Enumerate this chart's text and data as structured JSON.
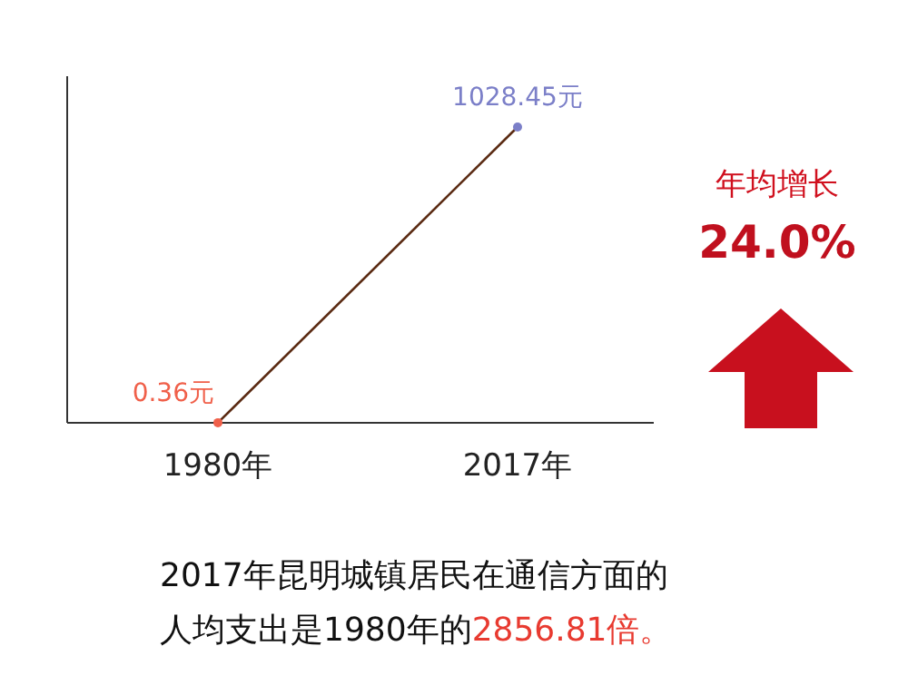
{
  "chart_data": {
    "type": "line",
    "categories": [
      "1980年",
      "2017年"
    ],
    "values": [
      0.36,
      1028.45
    ],
    "colors": [
      "#f0604a",
      "#7b7fc8"
    ],
    "color": "#5a2a12",
    "marker": "circle",
    "value_labels": [
      "0.36元",
      "1028.45元"
    ],
    "annotations": [
      "年均增长",
      "24.0%",
      "2017年昆明城镇居民在通信方面的",
      "人均支出是1980年的",
      "2856.81倍。"
    ]
  }
}
